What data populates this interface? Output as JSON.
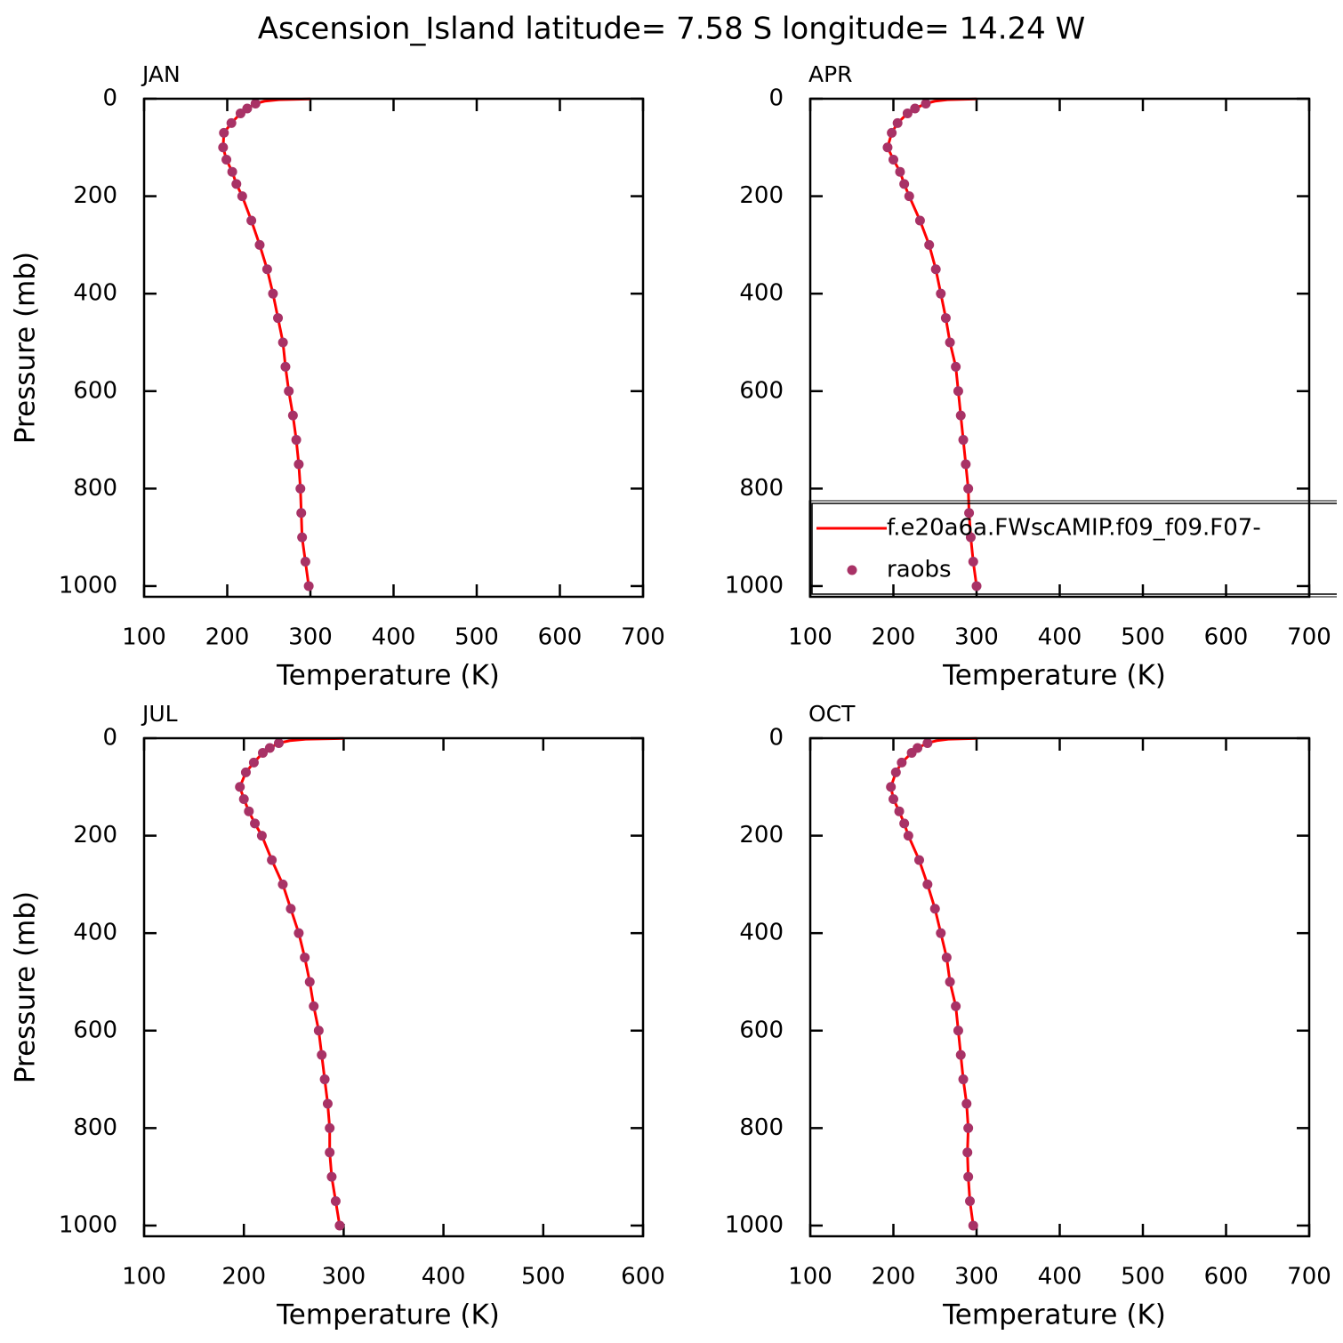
{
  "title": "Ascension_Island  latitude= 7.58 S longitude= 14.24 W",
  "chart_data": [
    {
      "type": "line",
      "title": "JAN",
      "xlabel": "Temperature (K)",
      "ylabel": "Pressure (mb)",
      "xlim": [
        100,
        700
      ],
      "xticks": [
        100,
        200,
        300,
        400,
        500,
        600,
        700
      ],
      "ylim": [
        1022,
        0
      ],
      "yticks": [
        0,
        200,
        400,
        600,
        800,
        1000
      ],
      "series": [
        {
          "style": "line",
          "color": "#ff0000",
          "x": [
            300,
            262,
            245,
            234,
            224,
            216,
            205,
            196,
            195,
            199,
            206,
            211,
            218,
            229,
            239,
            248,
            255,
            261,
            267,
            270,
            274,
            279,
            283,
            286,
            288,
            289,
            290,
            294,
            298
          ],
          "y": [
            0.5,
            2,
            5,
            10,
            20,
            30,
            50,
            70,
            100,
            125,
            150,
            175,
            200,
            250,
            300,
            350,
            400,
            450,
            500,
            550,
            600,
            650,
            700,
            750,
            800,
            850,
            900,
            950,
            1000
          ]
        },
        {
          "style": "markers",
          "color": "#a83266",
          "x": [
            234,
            224,
            216,
            205,
            196,
            195,
            199,
            206,
            211,
            218,
            229,
            239,
            248,
            255,
            261,
            267,
            270,
            274,
            279,
            283,
            286,
            288,
            289,
            290,
            294,
            298
          ],
          "y": [
            10,
            20,
            30,
            50,
            70,
            100,
            125,
            150,
            175,
            200,
            250,
            300,
            350,
            400,
            450,
            500,
            550,
            600,
            650,
            700,
            750,
            800,
            850,
            900,
            950,
            1000
          ]
        }
      ]
    },
    {
      "type": "line",
      "title": "APR",
      "xlabel": "Temperature (K)",
      "ylabel": "Pressure (mb)",
      "xlim": [
        100,
        700
      ],
      "xticks": [
        100,
        200,
        300,
        400,
        500,
        600,
        700
      ],
      "ylim": [
        1022,
        0
      ],
      "yticks": [
        0,
        200,
        400,
        600,
        800,
        1000
      ],
      "legend": "lower",
      "series": [
        {
          "name": "f.e20a6a.FWscAMIP.f09_f09.F07-",
          "style": "line",
          "color": "#ff0000",
          "x": [
            300,
            265,
            250,
            239,
            226,
            217,
            205,
            198,
            193,
            200,
            208,
            213,
            219,
            232,
            243,
            251,
            257,
            263,
            268,
            275,
            278,
            281,
            284,
            287,
            290,
            291,
            293,
            296,
            300
          ],
          "y": [
            0.5,
            2,
            5,
            10,
            20,
            30,
            50,
            70,
            100,
            125,
            150,
            175,
            200,
            250,
            300,
            350,
            400,
            450,
            500,
            550,
            600,
            650,
            700,
            750,
            800,
            850,
            900,
            950,
            1000
          ]
        },
        {
          "name": "raobs",
          "style": "markers",
          "color": "#a83266",
          "x": [
            239,
            226,
            217,
            205,
            198,
            193,
            200,
            208,
            213,
            219,
            232,
            243,
            251,
            257,
            263,
            268,
            275,
            278,
            281,
            284,
            287,
            290,
            291,
            293,
            296,
            300
          ],
          "y": [
            10,
            20,
            30,
            50,
            70,
            100,
            125,
            150,
            175,
            200,
            250,
            300,
            350,
            400,
            450,
            500,
            550,
            600,
            650,
            700,
            750,
            800,
            850,
            900,
            950,
            1000
          ]
        }
      ]
    },
    {
      "type": "line",
      "title": "JUL",
      "xlabel": "Temperature (K)",
      "ylabel": "Pressure (mb)",
      "xlim": [
        100,
        600
      ],
      "xticks": [
        100,
        200,
        300,
        400,
        500,
        600
      ],
      "ylim": [
        1022,
        0
      ],
      "yticks": [
        0,
        200,
        400,
        600,
        800,
        1000
      ],
      "series": [
        {
          "style": "line",
          "color": "#ff0000",
          "x": [
            300,
            262,
            246,
            235,
            226,
            219,
            210,
            202,
            196,
            200,
            205,
            211,
            218,
            228,
            239,
            247,
            255,
            261,
            266,
            270,
            275,
            278,
            281,
            284,
            286,
            286,
            288,
            292,
            296
          ],
          "y": [
            0.5,
            2,
            5,
            10,
            20,
            30,
            50,
            70,
            100,
            125,
            150,
            175,
            200,
            250,
            300,
            350,
            400,
            450,
            500,
            550,
            600,
            650,
            700,
            750,
            800,
            850,
            900,
            950,
            1000
          ]
        },
        {
          "style": "markers",
          "color": "#a83266",
          "x": [
            235,
            226,
            219,
            210,
            202,
            196,
            200,
            205,
            211,
            218,
            228,
            239,
            247,
            255,
            261,
            266,
            270,
            275,
            278,
            281,
            284,
            286,
            286,
            288,
            292,
            296
          ],
          "y": [
            10,
            20,
            30,
            50,
            70,
            100,
            125,
            150,
            175,
            200,
            250,
            300,
            350,
            400,
            450,
            500,
            550,
            600,
            650,
            700,
            750,
            800,
            850,
            900,
            950,
            1000
          ]
        }
      ]
    },
    {
      "type": "line",
      "title": "OCT",
      "xlabel": "Temperature (K)",
      "ylabel": "Pressure (mb)",
      "xlim": [
        100,
        700
      ],
      "xticks": [
        100,
        200,
        300,
        400,
        500,
        600,
        700
      ],
      "ylim": [
        1022,
        0
      ],
      "yticks": [
        0,
        200,
        400,
        600,
        800,
        1000
      ],
      "series": [
        {
          "style": "line",
          "color": "#ff0000",
          "x": [
            300,
            266,
            252,
            241,
            229,
            222,
            210,
            203,
            197,
            200,
            207,
            213,
            218,
            231,
            241,
            250,
            257,
            264,
            268,
            275,
            278,
            281,
            284,
            288,
            290,
            289,
            290,
            292,
            296
          ],
          "y": [
            0.5,
            2,
            5,
            10,
            20,
            30,
            50,
            70,
            100,
            125,
            150,
            175,
            200,
            250,
            300,
            350,
            400,
            450,
            500,
            550,
            600,
            650,
            700,
            750,
            800,
            850,
            900,
            950,
            1000
          ]
        },
        {
          "style": "markers",
          "color": "#a83266",
          "x": [
            241,
            229,
            222,
            210,
            203,
            197,
            200,
            207,
            213,
            218,
            231,
            241,
            250,
            257,
            264,
            268,
            275,
            278,
            281,
            284,
            288,
            290,
            289,
            290,
            292,
            296
          ],
          "y": [
            10,
            20,
            30,
            50,
            70,
            100,
            125,
            150,
            175,
            200,
            250,
            300,
            350,
            400,
            450,
            500,
            550,
            600,
            650,
            700,
            750,
            800,
            850,
            900,
            950,
            1000
          ]
        }
      ]
    }
  ]
}
